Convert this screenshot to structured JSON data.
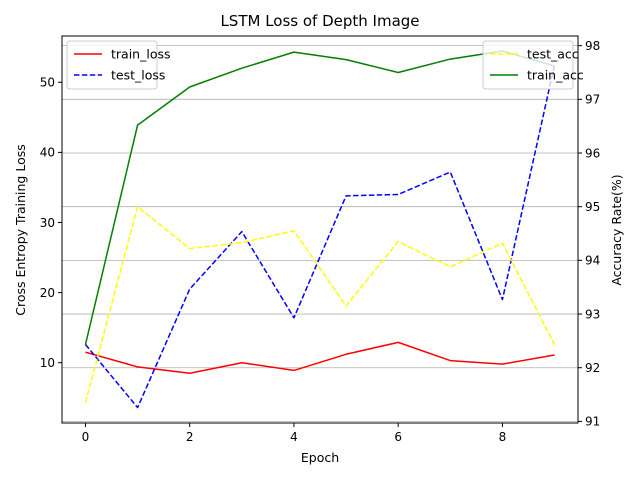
{
  "chart_data": {
    "type": "line",
    "title": "LSTM Loss of Depth Image",
    "xlabel": "Epoch",
    "ylabel_left": "Cross Entropy Training Loss",
    "ylabel_right": "Accuracy Rate(%)",
    "x": [
      0,
      1,
      2,
      3,
      4,
      5,
      6,
      7,
      8,
      9
    ],
    "xlim": [
      -0.45,
      9.45
    ],
    "ylim_left": [
      1.4,
      56.6
    ],
    "ylim_right": [
      90.97,
      98.18
    ],
    "xticks": [
      0,
      2,
      4,
      6,
      8
    ],
    "yticks_left": [
      10,
      20,
      30,
      40,
      50
    ],
    "yticks_right": [
      91,
      92,
      93,
      94,
      95,
      96,
      97,
      98
    ],
    "grid": "horizontal lines at right-axis ticks",
    "left_series": [
      {
        "name": "train_loss",
        "color": "#ff0000",
        "dash": "solid",
        "values": [
          11.5,
          9.4,
          8.5,
          10.0,
          8.9,
          11.2,
          12.9,
          10.3,
          9.8,
          11.1
        ]
      },
      {
        "name": "test_loss",
        "color": "#0000ff",
        "dash": "dashed",
        "values": [
          12.6,
          3.6,
          20.5,
          28.7,
          16.4,
          33.8,
          34.0,
          37.2,
          19.0,
          52.5
        ]
      }
    ],
    "right_series": [
      {
        "name": "test_acc",
        "color": "#ffff00",
        "dash": "dashed",
        "values": [
          91.35,
          95.0,
          94.22,
          94.33,
          94.55,
          93.15,
          94.35,
          93.88,
          94.32,
          92.43
        ]
      },
      {
        "name": "train_acc",
        "color": "#008000",
        "dash": "solid",
        "values": [
          92.43,
          96.52,
          97.23,
          97.58,
          97.88,
          97.74,
          97.5,
          97.75,
          97.9,
          97.62
        ]
      }
    ],
    "legend_left": {
      "placement": "upper-left",
      "entries": [
        "train_loss",
        "test_loss"
      ]
    },
    "legend_right": {
      "placement": "upper-right",
      "entries": [
        "test_acc",
        "train_acc"
      ]
    }
  }
}
